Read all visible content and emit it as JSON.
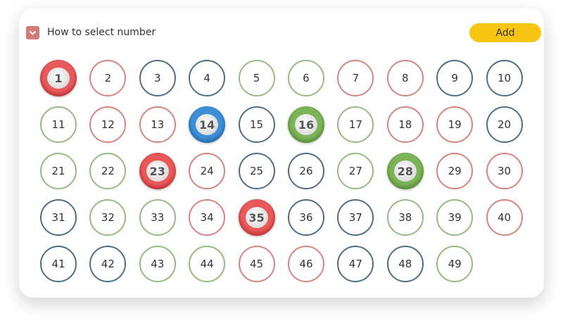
{
  "header": {
    "title": "How to select number",
    "toggle_icon": "chevron-down-icon",
    "add_label": "Add"
  },
  "colors": {
    "red": "#d9837d",
    "blue": "#4e6e84",
    "green": "#95bb80",
    "add": "#f8c513"
  },
  "balls": [
    {
      "n": "1",
      "c": "red",
      "s": true
    },
    {
      "n": "2",
      "c": "red"
    },
    {
      "n": "3",
      "c": "blue"
    },
    {
      "n": "4",
      "c": "blue"
    },
    {
      "n": "5",
      "c": "green"
    },
    {
      "n": "6",
      "c": "green"
    },
    {
      "n": "7",
      "c": "red"
    },
    {
      "n": "8",
      "c": "red"
    },
    {
      "n": "9",
      "c": "blue"
    },
    {
      "n": "10",
      "c": "blue"
    },
    {
      "n": "11",
      "c": "green"
    },
    {
      "n": "12",
      "c": "red"
    },
    {
      "n": "13",
      "c": "red"
    },
    {
      "n": "14",
      "c": "blue",
      "s": true
    },
    {
      "n": "15",
      "c": "blue"
    },
    {
      "n": "16",
      "c": "green",
      "s": true
    },
    {
      "n": "17",
      "c": "green"
    },
    {
      "n": "18",
      "c": "red"
    },
    {
      "n": "19",
      "c": "red"
    },
    {
      "n": "20",
      "c": "blue"
    },
    {
      "n": "21",
      "c": "green"
    },
    {
      "n": "22",
      "c": "green"
    },
    {
      "n": "23",
      "c": "red",
      "s": true
    },
    {
      "n": "24",
      "c": "red"
    },
    {
      "n": "25",
      "c": "blue"
    },
    {
      "n": "26",
      "c": "blue"
    },
    {
      "n": "27",
      "c": "green"
    },
    {
      "n": "28",
      "c": "green",
      "s": true
    },
    {
      "n": "29",
      "c": "red"
    },
    {
      "n": "30",
      "c": "red"
    },
    {
      "n": "31",
      "c": "blue"
    },
    {
      "n": "32",
      "c": "green"
    },
    {
      "n": "33",
      "c": "green"
    },
    {
      "n": "34",
      "c": "red"
    },
    {
      "n": "35",
      "c": "red",
      "s": true
    },
    {
      "n": "36",
      "c": "blue"
    },
    {
      "n": "37",
      "c": "blue"
    },
    {
      "n": "38",
      "c": "green"
    },
    {
      "n": "39",
      "c": "green"
    },
    {
      "n": "40",
      "c": "red"
    },
    {
      "n": "41",
      "c": "blue"
    },
    {
      "n": "42",
      "c": "blue"
    },
    {
      "n": "43",
      "c": "green"
    },
    {
      "n": "44",
      "c": "green"
    },
    {
      "n": "45",
      "c": "red"
    },
    {
      "n": "46",
      "c": "red"
    },
    {
      "n": "47",
      "c": "blue"
    },
    {
      "n": "48",
      "c": "blue"
    },
    {
      "n": "49",
      "c": "green"
    }
  ]
}
